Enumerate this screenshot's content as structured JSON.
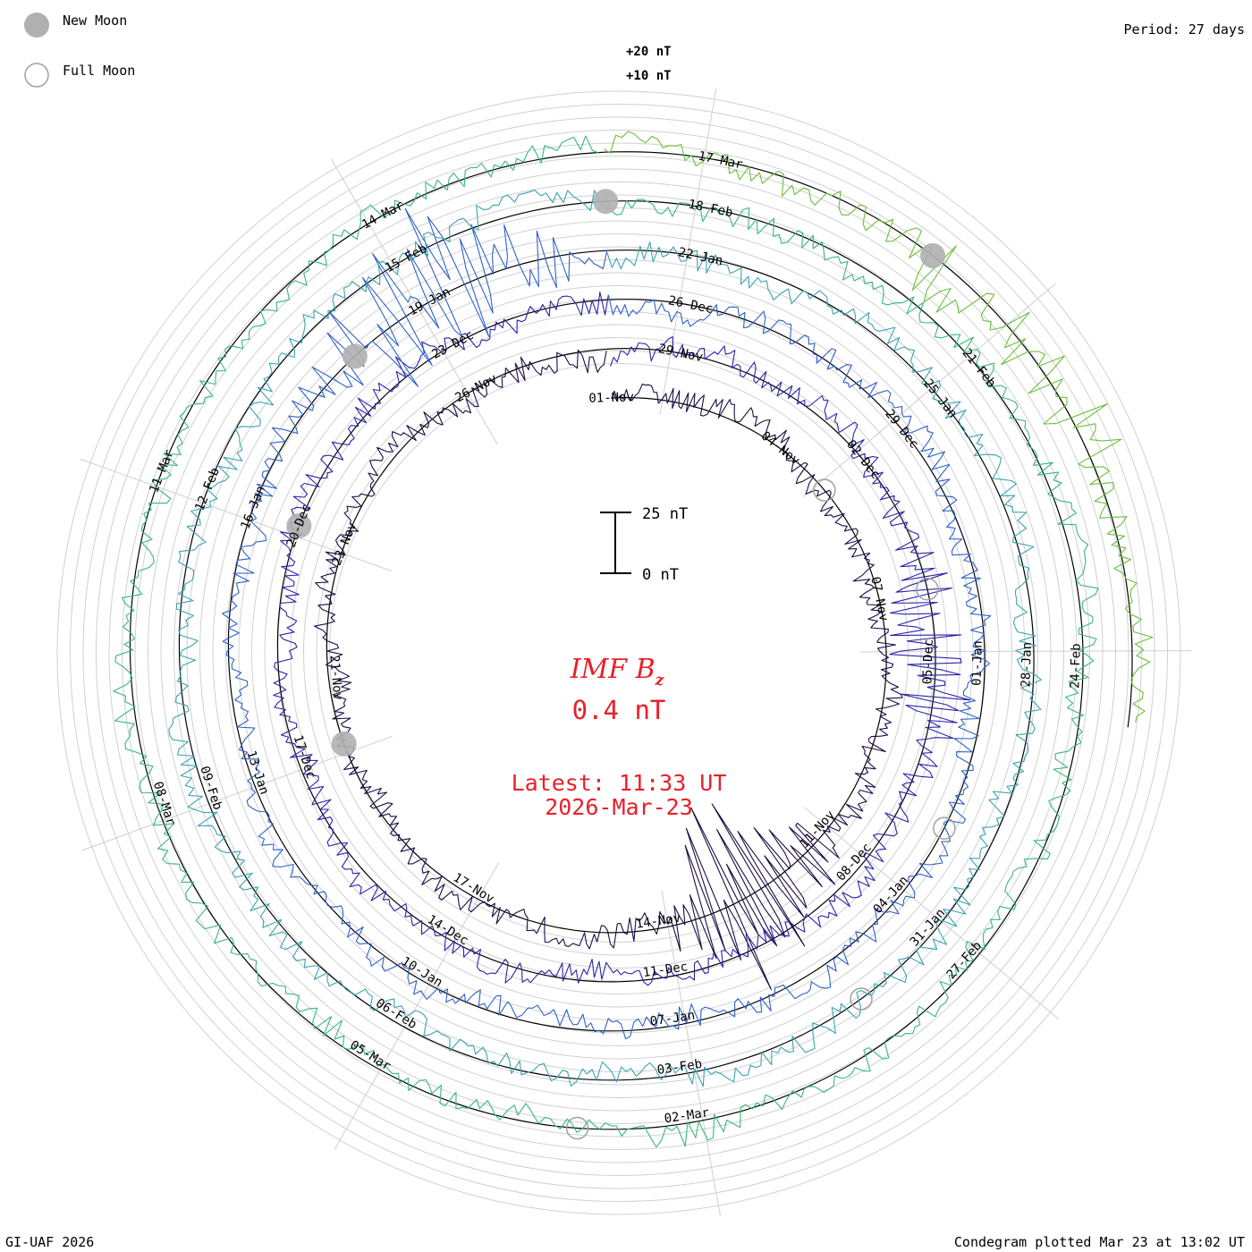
{
  "chart_data": {
    "type": "condegram",
    "title": "IMF B",
    "title_subscript": "z",
    "latest_value": "0.4 nT",
    "latest_time": "Latest: 11:33 UT",
    "latest_date": "2026-Mar-23",
    "period": "Period: 27 days",
    "credit": "GI-UAF 2026",
    "plotted": "Condegram plotted Mar 23 at 13:02 UT",
    "legend": [
      {
        "label": "New Moon",
        "symbol": "filled"
      },
      {
        "label": "Full Moon",
        "symbol": "open"
      }
    ],
    "scale_labels": {
      "top": "+20 nT",
      "second": "+10 nT"
    },
    "scale_bar": {
      "top_label": "25 nT",
      "bottom_label": "0 nT",
      "range_nT": [
        0,
        25
      ]
    },
    "start_date": "2025-11-01",
    "end_date": "2026-03-23",
    "series_colors": [
      "#1c0c45",
      "#2a24a8",
      "#2f61c8",
      "#3aa3b0",
      "#38b87a",
      "#6bbf3a",
      "#a8b81e",
      "#c38a10",
      "#c24a10",
      "#c01010"
    ],
    "date_labels": [
      {
        "text": "01-Nov",
        "day": 0
      },
      {
        "text": "04-Nov",
        "day": 3
      },
      {
        "text": "07-Nov",
        "day": 6
      },
      {
        "text": "11-Nov",
        "day": 10
      },
      {
        "text": "14-Nov",
        "day": 13
      },
      {
        "text": "17-Nov",
        "day": 16
      },
      {
        "text": "21-Nov",
        "day": 20
      },
      {
        "text": "23-Nov",
        "day": 22
      },
      {
        "text": "26-Nov",
        "day": 25
      },
      {
        "text": "29-Nov",
        "day": 28
      },
      {
        "text": "02-Dec",
        "day": 31
      },
      {
        "text": "05-Dec",
        "day": 34
      },
      {
        "text": "08-Dec",
        "day": 37
      },
      {
        "text": "11-Dec",
        "day": 40
      },
      {
        "text": "14-Dec",
        "day": 43
      },
      {
        "text": "17-Dec",
        "day": 46
      },
      {
        "text": "20-Dec",
        "day": 49
      },
      {
        "text": "23-Dec",
        "day": 52
      },
      {
        "text": "26-Dec",
        "day": 55
      },
      {
        "text": "29-Dec",
        "day": 58
      },
      {
        "text": "01-Jan",
        "day": 61
      },
      {
        "text": "04-Jan",
        "day": 64
      },
      {
        "text": "07-Jan",
        "day": 67
      },
      {
        "text": "10-Jan",
        "day": 70
      },
      {
        "text": "13-Jan",
        "day": 73
      },
      {
        "text": "16-Jan",
        "day": 76
      },
      {
        "text": "19-Jan",
        "day": 79
      },
      {
        "text": "22-Jan",
        "day": 82
      },
      {
        "text": "25-Jan",
        "day": 85
      },
      {
        "text": "28-Jan",
        "day": 88
      },
      {
        "text": "31-Jan",
        "day": 91
      },
      {
        "text": "03-Feb",
        "day": 94
      },
      {
        "text": "06-Feb",
        "day": 97
      },
      {
        "text": "09-Feb",
        "day": 100
      },
      {
        "text": "12-Feb",
        "day": 103
      },
      {
        "text": "15-Feb",
        "day": 106
      },
      {
        "text": "18-Feb",
        "day": 109
      },
      {
        "text": "21-Feb",
        "day": 112
      },
      {
        "text": "24-Feb",
        "day": 115
      },
      {
        "text": "27-Feb",
        "day": 118
      },
      {
        "text": "02-Mar",
        "day": 121
      },
      {
        "text": "05-Mar",
        "day": 124
      },
      {
        "text": "08-Mar",
        "day": 127
      },
      {
        "text": "11-Mar",
        "day": 130
      },
      {
        "text": "14-Mar",
        "day": 133
      },
      {
        "text": "17-Mar",
        "day": 136
      }
    ],
    "new_moons": [
      {
        "date": "2025-11-20",
        "day": 19
      },
      {
        "date": "2025-12-20",
        "day": 49
      },
      {
        "date": "2026-01-18",
        "day": 78
      },
      {
        "date": "2026-02-17",
        "day": 108
      },
      {
        "date": "2026-03-19",
        "day": 138
      }
    ],
    "full_moons": [
      {
        "date": "2025-11-05",
        "day": 4
      },
      {
        "date": "2025-12-04",
        "day": 33
      },
      {
        "date": "2026-01-03",
        "day": 63
      },
      {
        "date": "2026-02-01",
        "day": 92
      },
      {
        "date": "2026-03-03",
        "day": 122
      }
    ],
    "notable_events": [
      {
        "day": 11.5,
        "peak_nT": 60,
        "desc": "large positive spikes near 11-Nov"
      },
      {
        "day": 34,
        "peak_nT": 22,
        "desc": "enhanced activity near 05-Dec"
      },
      {
        "day": 79,
        "peak_nT": 45,
        "desc": "large excursion near 19-Jan"
      },
      {
        "day": 139,
        "peak_nT": 25,
        "desc": "disturbed interval near 20-Mar"
      }
    ]
  }
}
